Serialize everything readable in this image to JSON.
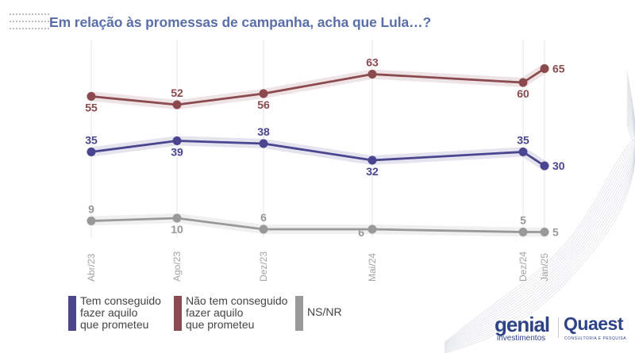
{
  "title": "Em relação às promessas de campanha, acha que Lula…?",
  "colors": {
    "title": "#5a6fa8",
    "tem_conseguido": "#4b4590",
    "nao_tem_conseguido": "#8b4a4e",
    "ns_nr": "#999999",
    "grid": "#e6e6ec"
  },
  "chart_data": {
    "type": "line",
    "title": "Em relação às promessas de campanha, acha que Lula…?",
    "xlabel": "",
    "ylabel": "",
    "categories": [
      "Abr/23",
      "Ago/23",
      "Dez/23",
      "Mai/24",
      "Dez/24",
      "Jan/25"
    ],
    "grid": "vertical",
    "legend_position": "bottom-left",
    "series": [
      {
        "key": "nao_tem_conseguido",
        "name": "Não tem conseguido fazer aquilo que prometeu",
        "values": [
          55,
          52,
          56,
          63,
          60,
          65
        ],
        "label_pos": [
          "below",
          "above",
          "below",
          "above",
          "below",
          "right"
        ]
      },
      {
        "key": "tem_conseguido",
        "name": "Tem conseguido fazer aquilo que prometeu",
        "values": [
          35,
          39,
          38,
          32,
          35,
          30
        ],
        "label_pos": [
          "above",
          "below",
          "above",
          "below",
          "above",
          "right"
        ]
      },
      {
        "key": "ns_nr",
        "name": "NS/NR",
        "values": [
          9,
          10,
          6,
          6,
          5,
          5
        ],
        "label_pos": [
          "above",
          "below",
          "above",
          "left",
          "above",
          "right"
        ]
      }
    ]
  },
  "legend": [
    {
      "key": "tem_conseguido",
      "label_lines": [
        "Tem conseguido",
        "fazer aquilo",
        "que prometeu"
      ]
    },
    {
      "key": "nao_tem_conseguido",
      "label_lines": [
        "Não tem conseguido",
        "fazer aquilo",
        "que prometeu"
      ]
    },
    {
      "key": "ns_nr",
      "label_lines": [
        "NS/NR"
      ]
    }
  ],
  "logos": {
    "genial": "genial",
    "genial_sub": "investimentos",
    "quaest": "Quaest",
    "quaest_sub": "CONSULTORIA E PESQUISA"
  }
}
